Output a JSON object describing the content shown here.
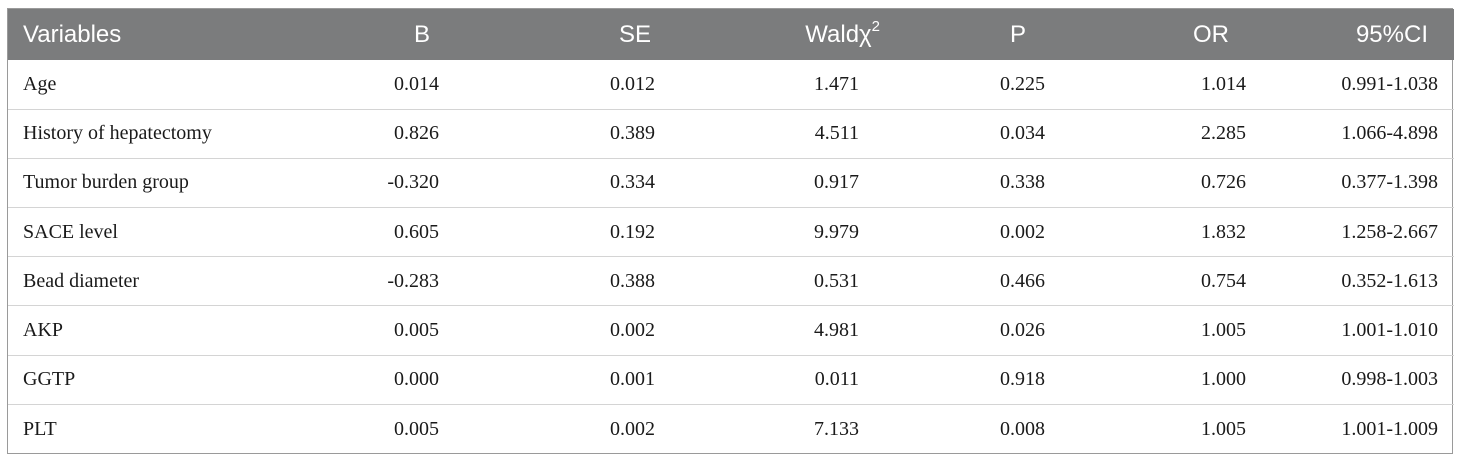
{
  "table": {
    "headers": {
      "variables": "Variables",
      "b": "B",
      "se": "SE",
      "wald_main": "Waldχ",
      "wald_sup": "2",
      "p": "P",
      "or": "OR",
      "ci": "95%CI"
    },
    "rows": [
      {
        "variable": "Age",
        "b": "0.014",
        "se": "0.012",
        "wald": "1.471",
        "p": "0.225",
        "or": "1.014",
        "ci": "0.991-1.038"
      },
      {
        "variable": "History of hepatectomy",
        "b": "0.826",
        "se": "0.389",
        "wald": "4.511",
        "p": "0.034",
        "or": "2.285",
        "ci": "1.066-4.898"
      },
      {
        "variable": "Tumor burden group",
        "b": "-0.320",
        "se": "0.334",
        "wald": "0.917",
        "p": "0.338",
        "or": "0.726",
        "ci": "0.377-1.398"
      },
      {
        "variable": "SACE level",
        "b": "0.605",
        "se": "0.192",
        "wald": "9.979",
        "p": "0.002",
        "or": "1.832",
        "ci": "1.258-2.667"
      },
      {
        "variable": "Bead diameter",
        "b": "-0.283",
        "se": "0.388",
        "wald": "0.531",
        "p": "0.466",
        "or": "0.754",
        "ci": "0.352-1.613"
      },
      {
        "variable": "AKP",
        "b": "0.005",
        "se": "0.002",
        "wald": "4.981",
        "p": "0.026",
        "or": "1.005",
        "ci": "1.001-1.010"
      },
      {
        "variable": "GGTP",
        "b": "0.000",
        "se": "0.001",
        "wald": "0.011",
        "p": "0.918",
        "or": "1.000",
        "ci": "0.998-1.003"
      },
      {
        "variable": "PLT",
        "b": "0.005",
        "se": "0.002",
        "wald": "7.133",
        "p": "0.008",
        "or": "1.005",
        "ci": "1.001-1.009"
      }
    ],
    "colors": {
      "header_bg": "#7b7c7d",
      "header_text": "#ffffff",
      "row_divider": "#d4d4d4",
      "frame_border": "#9a9a9a"
    }
  }
}
